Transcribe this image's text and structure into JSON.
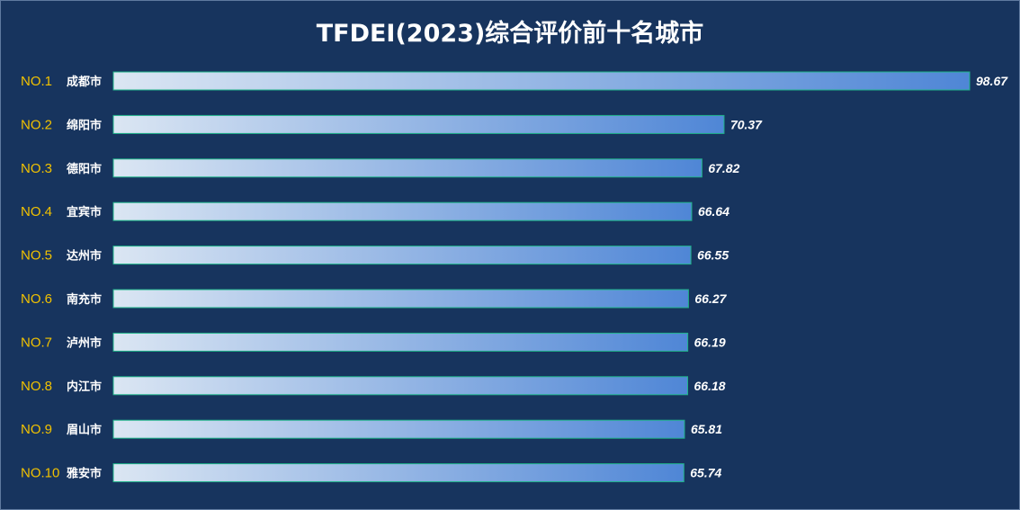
{
  "chart_data": {
    "type": "bar",
    "orientation": "horizontal",
    "title": "TFDEI(2023)综合评价前十名城市",
    "ranks": [
      "NO.1",
      "NO.2",
      "NO.3",
      "NO.4",
      "NO.5",
      "NO.6",
      "NO.7",
      "NO.8",
      "NO.9",
      "NO.10"
    ],
    "categories": [
      "成都市",
      "绵阳市",
      "德阳市",
      "宜宾市",
      "达州市",
      "南充市",
      "泸州市",
      "内江市",
      "眉山市",
      "雅安市"
    ],
    "values": [
      98.67,
      70.37,
      67.82,
      66.64,
      66.55,
      66.27,
      66.19,
      66.18,
      65.81,
      65.74
    ],
    "value_labels": [
      "98.67",
      "70.37",
      "67.82",
      "66.64",
      "66.55",
      "66.27",
      "66.19",
      "66.18",
      "65.81",
      "65.74"
    ],
    "xlim": [
      0,
      98.67
    ],
    "grid": false,
    "legend": "none"
  },
  "colors": {
    "background": "#17345e",
    "rank_text": "#f2c200",
    "bar_gradient_start": "#dbe6f3",
    "bar_gradient_end": "#4f86d6",
    "bar_border": "#1fb58a"
  }
}
